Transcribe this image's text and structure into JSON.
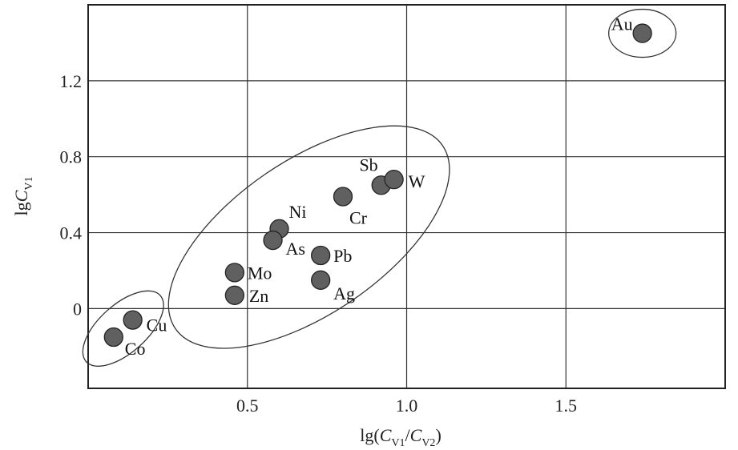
{
  "chart_data": {
    "type": "scatter",
    "xlabel": {
      "prefix": "lg(",
      "var1": "C",
      "sub1": "V1",
      "slash": "/",
      "var2": "C",
      "sub2": "V2",
      "suffix": ")"
    },
    "ylabel": {
      "prefix": "lg",
      "var": "C",
      "sub": "V1"
    },
    "xlim": [
      0.0,
      2.0
    ],
    "ylim": [
      -0.42,
      1.6
    ],
    "x_ticks": [
      {
        "value": 0.5,
        "label": "0.5"
      },
      {
        "value": 1.0,
        "label": "1.0"
      },
      {
        "value": 1.5,
        "label": "1.5"
      }
    ],
    "y_ticks": [
      {
        "value": 0.0,
        "label": "0"
      },
      {
        "value": 0.4,
        "label": "0.4"
      },
      {
        "value": 0.8,
        "label": "0.8"
      },
      {
        "value": 1.2,
        "label": "1.2"
      }
    ],
    "grid": true,
    "marker_color": "#606060",
    "points": [
      {
        "label": "Au",
        "x": 1.74,
        "y": 1.45
      },
      {
        "label": "Sb",
        "x": 0.92,
        "y": 0.65
      },
      {
        "label": "W",
        "x": 0.96,
        "y": 0.68
      },
      {
        "label": "Cr",
        "x": 0.8,
        "y": 0.59
      },
      {
        "label": "Ni",
        "x": 0.6,
        "y": 0.42
      },
      {
        "label": "As",
        "x": 0.58,
        "y": 0.36
      },
      {
        "label": "Pb",
        "x": 0.73,
        "y": 0.28
      },
      {
        "label": "Ag",
        "x": 0.73,
        "y": 0.15
      },
      {
        "label": "Mo",
        "x": 0.46,
        "y": 0.19
      },
      {
        "label": "Zn",
        "x": 0.46,
        "y": 0.07
      },
      {
        "label": "Cu",
        "x": 0.14,
        "y": -0.06
      },
      {
        "label": "Co",
        "x": 0.08,
        "y": -0.15
      }
    ],
    "groups": [
      {
        "members": [
          "Au"
        ]
      },
      {
        "members": [
          "Sb",
          "W",
          "Cr",
          "Ni",
          "As",
          "Pb",
          "Ag",
          "Mo",
          "Zn"
        ]
      },
      {
        "members": [
          "Cu",
          "Co"
        ]
      }
    ]
  }
}
